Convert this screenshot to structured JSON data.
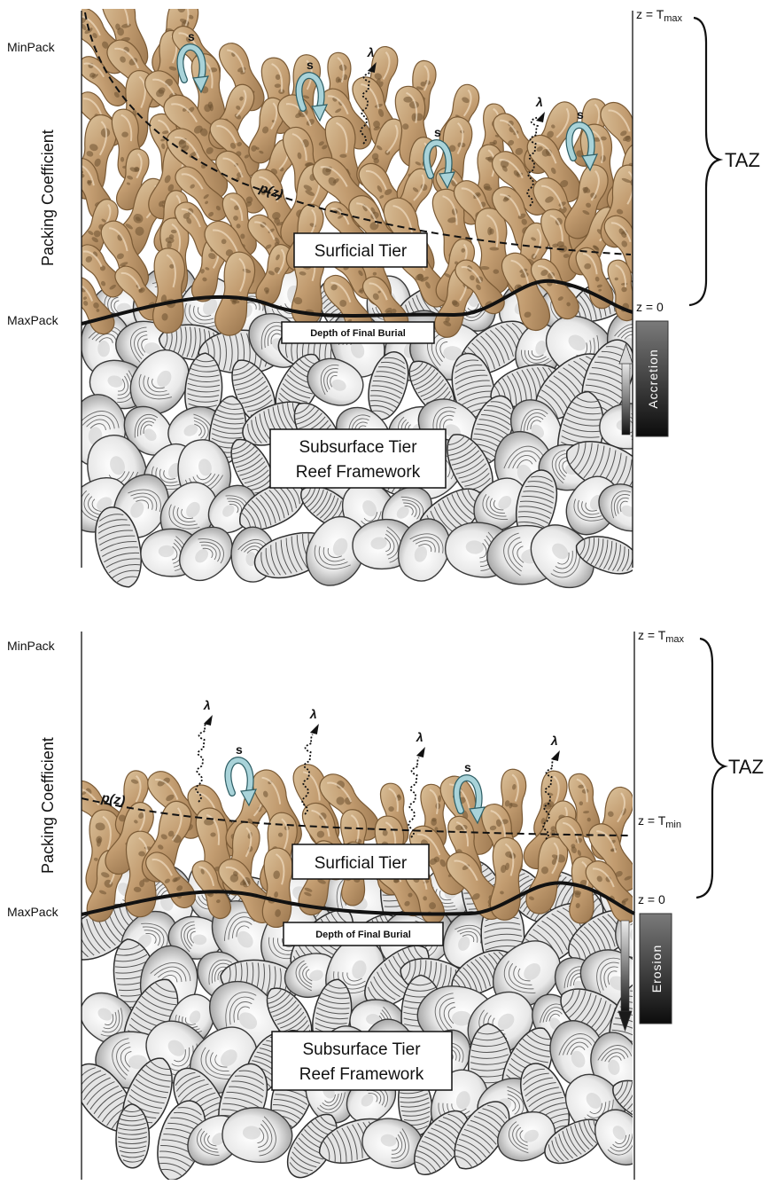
{
  "panels": [
    {
      "id": "accretion",
      "labels": {
        "min_pack": "MinPack",
        "max_pack": "MaxPack",
        "packing_coefficient": "Packing Coefficient",
        "z_tmax": "z = T",
        "z_tmax_sub": "max",
        "z_tmin": "",
        "z_tmin_sub": "",
        "z_zero": "z = 0",
        "taz": "TAZ",
        "p_z": "p(z)",
        "surficial_tier": "Surficial Tier",
        "depth_final_burial": "Depth of Final Burial",
        "subsurface_line1": "Subsurface Tier",
        "subsurface_line2": "Reef Framework",
        "process_label": "Accretion",
        "s_symbol": "s",
        "lambda_symbol": "λ"
      }
    },
    {
      "id": "erosion",
      "labels": {
        "min_pack": "MinPack",
        "max_pack": "MaxPack",
        "packing_coefficient": "Packing Coefficient",
        "z_tmax": "z = T",
        "z_tmax_sub": "max",
        "z_tmin": "z = T",
        "z_tmin_sub": "min",
        "z_zero": "z = 0",
        "taz": "TAZ",
        "p_z": "p(z)",
        "surficial_tier": "Surficial Tier",
        "depth_final_burial": "Depth of Final Burial",
        "subsurface_line1": "Subsurface Tier",
        "subsurface_line2": "Reef Framework",
        "process_label": "Erosion",
        "s_symbol": "s",
        "lambda_symbol": "λ"
      }
    }
  ],
  "colors": {
    "live_shell": "#c9a77f",
    "live_shell_dark": "#8a6a45",
    "dead_shell": "#eeeeee",
    "dead_shell_dark": "#555555",
    "s_arrow": "#a9d3d9",
    "arrow_bar_light": "#e6e6e6",
    "arrow_bar_dark": "#222222"
  }
}
